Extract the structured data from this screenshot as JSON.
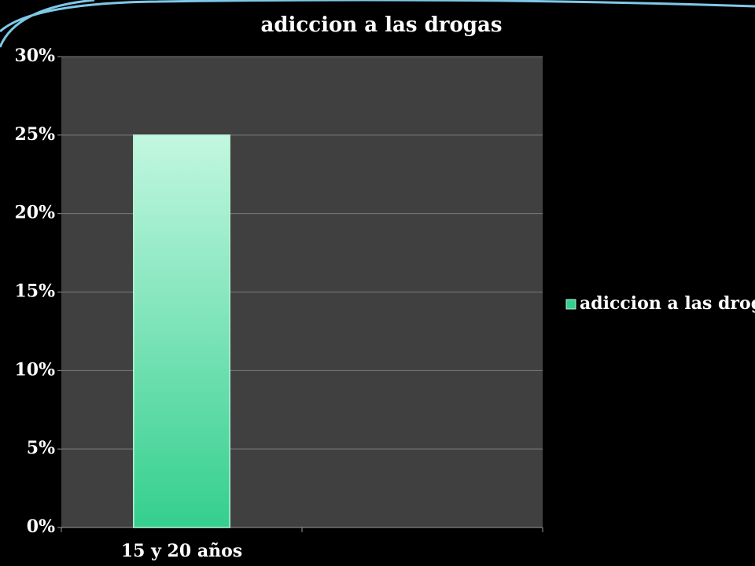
{
  "chart_data": {
    "type": "bar",
    "title": "adiccion a las drogas",
    "categories": [
      "15 y 20 años",
      null
    ],
    "series": [
      {
        "name": "adiccion a las drogas",
        "color": "#34cf8e",
        "values": [
          25,
          null
        ]
      }
    ],
    "ylim": [
      0,
      30
    ],
    "yticks": [
      {
        "value": 0,
        "label": "0%"
      },
      {
        "value": 5,
        "label": "5%"
      },
      {
        "value": 10,
        "label": "10%"
      },
      {
        "value": 15,
        "label": "15%"
      },
      {
        "value": 20,
        "label": "20%"
      },
      {
        "value": 25,
        "label": "25%"
      },
      {
        "value": 30,
        "label": "30%"
      }
    ],
    "grid": true,
    "legend": "right"
  }
}
